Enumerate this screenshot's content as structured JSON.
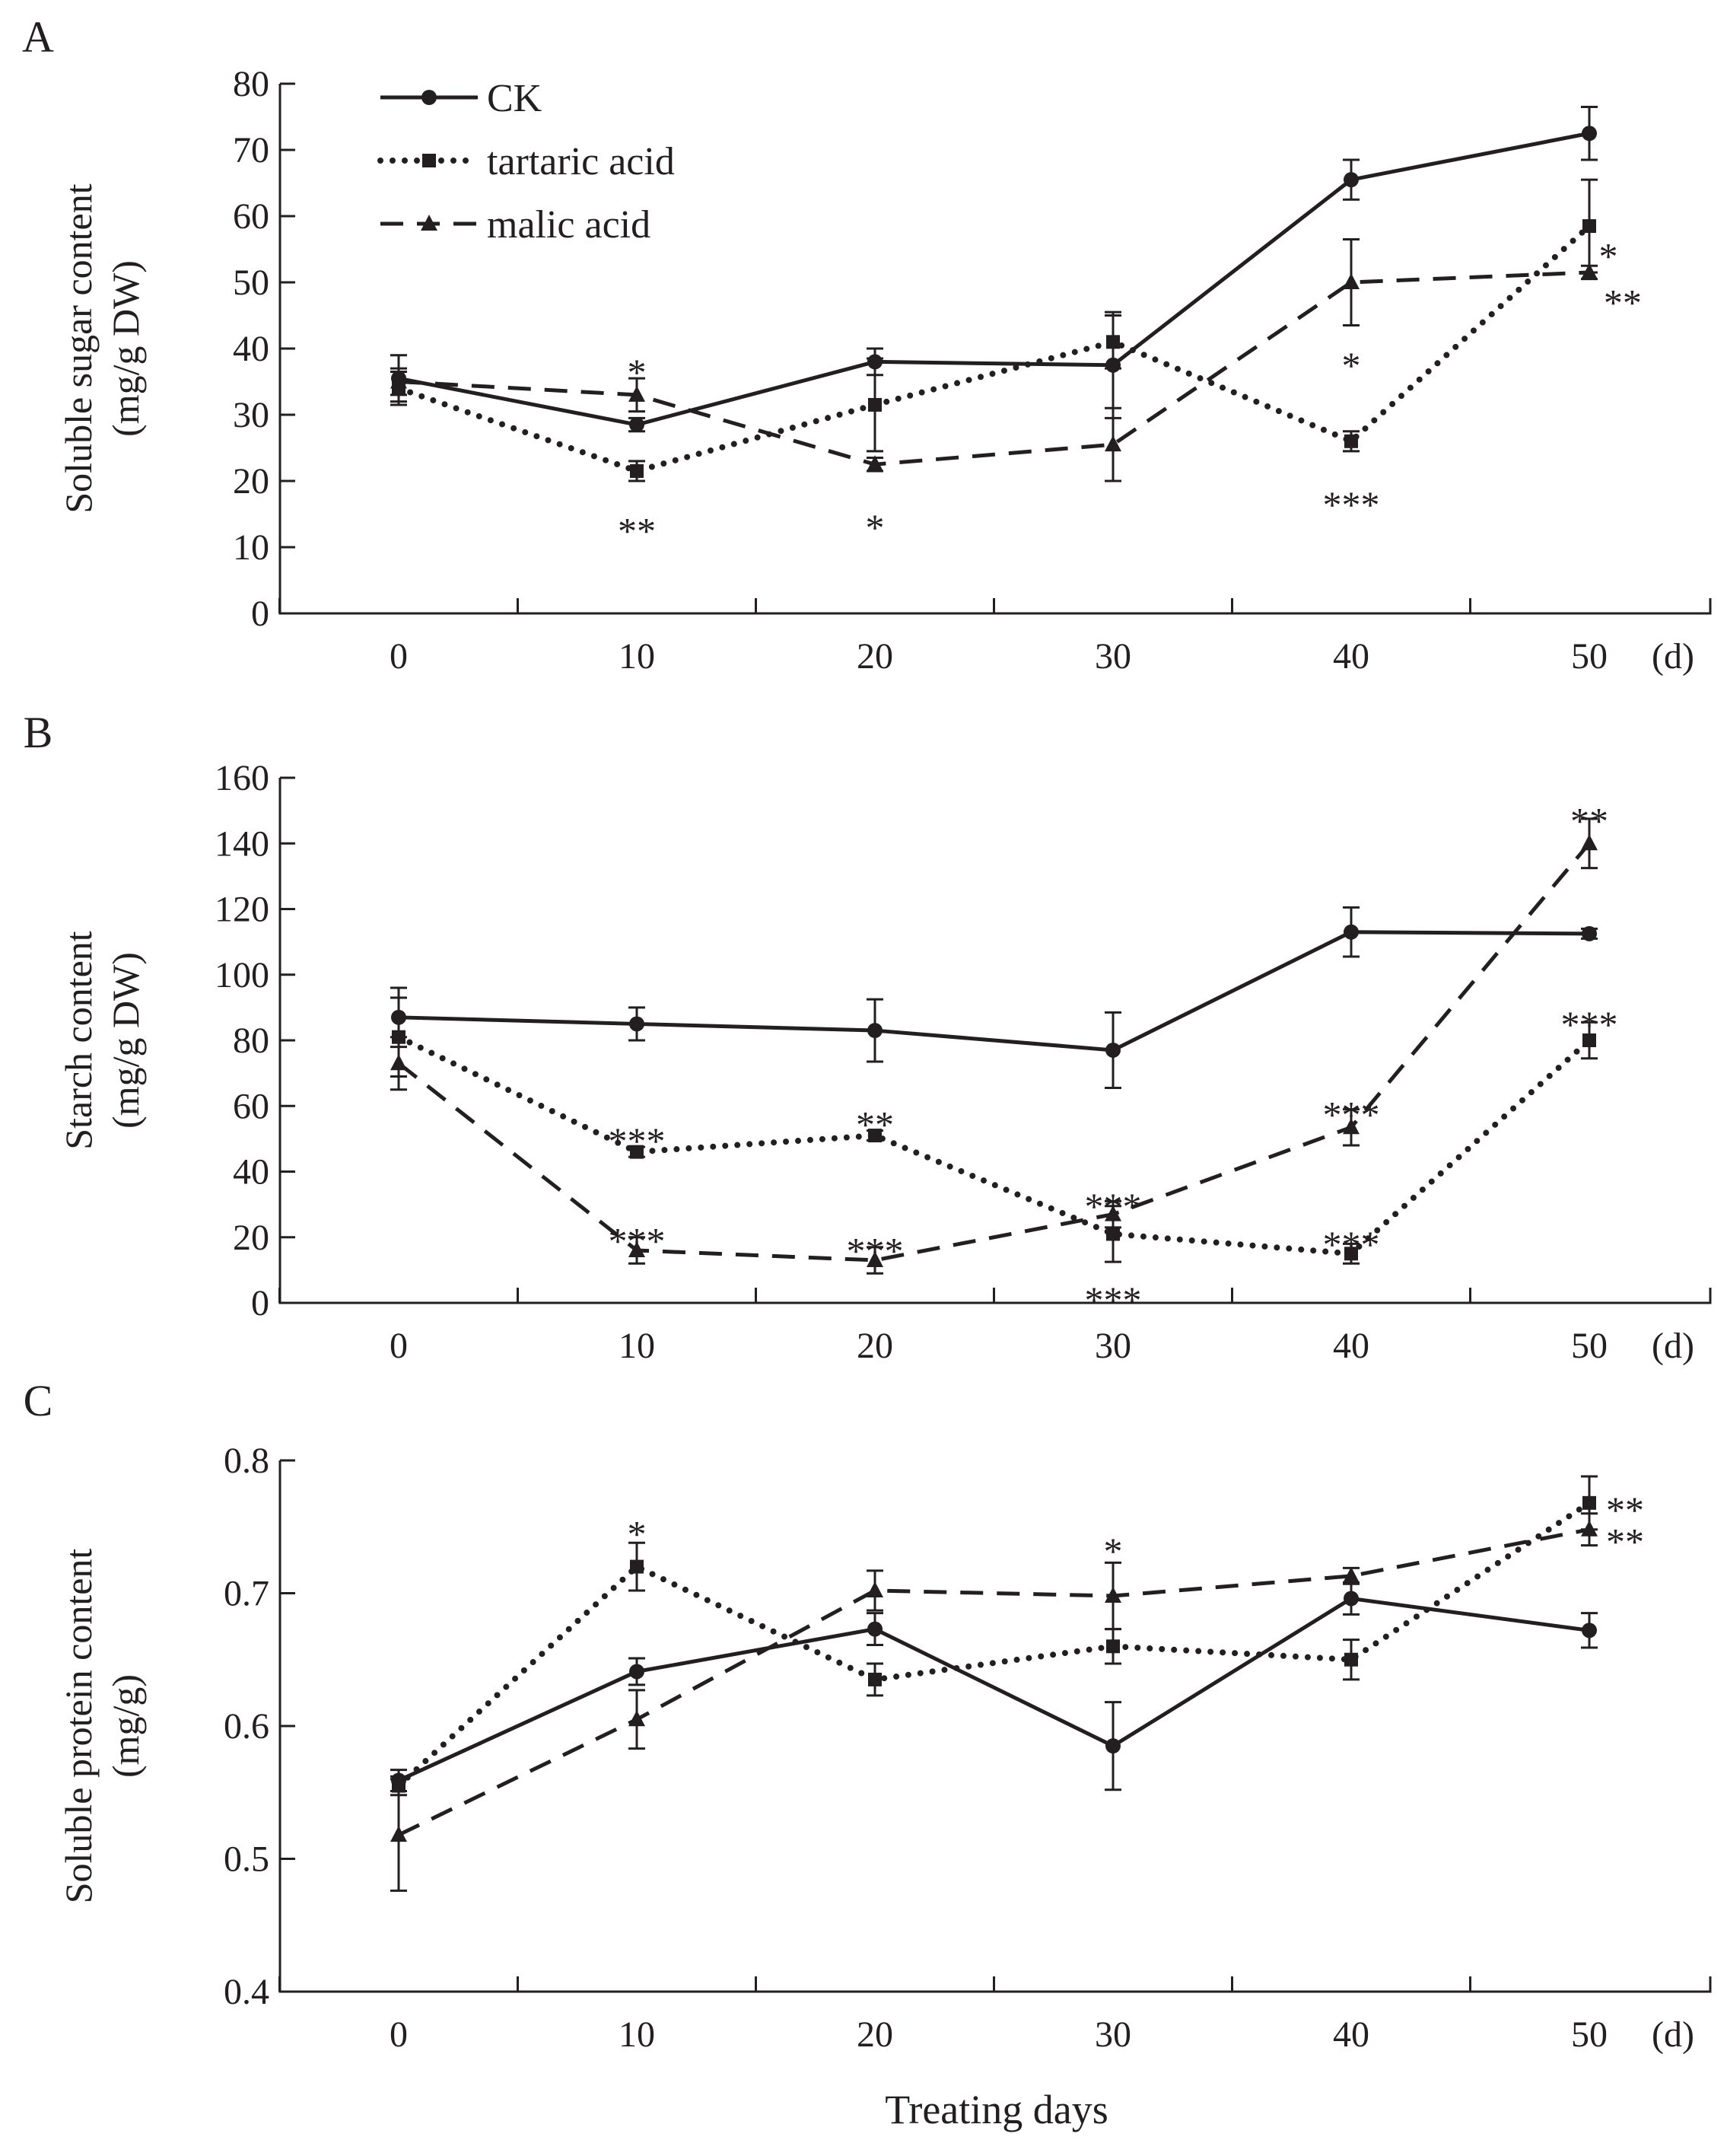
{
  "figure": {
    "x_title": "Treating days",
    "x_unit_suffix": "(d)"
  },
  "legend": [
    {
      "key": "ck",
      "label": "CK"
    },
    {
      "key": "tartaric",
      "label": "tartaric acid"
    },
    {
      "key": "malic",
      "label": "malic acid"
    }
  ],
  "chart_data": [
    {
      "panel": "A",
      "type": "line",
      "ylabel": [
        "Soluble sugar content",
        "(mg/g DW)"
      ],
      "xlabel": "Treating days",
      "categories": [
        0,
        10,
        20,
        30,
        40,
        50
      ],
      "x_tick_labels": [
        "0",
        "10",
        "20",
        "30",
        "40",
        "50"
      ],
      "ylim": [
        0,
        80
      ],
      "y_ticks": [
        0,
        10,
        20,
        30,
        40,
        50,
        60,
        70,
        80
      ],
      "y_tick_labels": [
        "0",
        "10",
        "20",
        "30",
        "40",
        "50",
        "60",
        "70",
        "80"
      ],
      "series": [
        {
          "name": "CK",
          "marker": "circle",
          "style": "solid",
          "x": [
            0,
            10,
            20,
            30,
            40,
            50
          ],
          "values": [
            35.5,
            28.5,
            38,
            37.5,
            65.5,
            72.5
          ],
          "errors": [
            3.5,
            1,
            2,
            8,
            3,
            4
          ]
        },
        {
          "name": "tartaric acid",
          "marker": "square",
          "style": "dotted",
          "x": [
            0,
            10,
            20,
            30,
            40,
            50
          ],
          "values": [
            34,
            21.5,
            31.5,
            41,
            26,
            58.5
          ],
          "errors": [
            2.5,
            1.5,
            7,
            4,
            1.5,
            7
          ]
        },
        {
          "name": "malic acid",
          "marker": "triangle",
          "style": "dashed",
          "x": [
            0,
            10,
            20,
            30,
            40,
            50
          ],
          "values": [
            35,
            33,
            22.5,
            25.5,
            50,
            51.5
          ],
          "errors": [
            2,
            2.5,
            1,
            5.5,
            6.5,
            1
          ]
        }
      ],
      "annotations": [
        {
          "x": 10,
          "y": 37.5,
          "text": "*"
        },
        {
          "x": 10,
          "y": 13.5,
          "text": "**"
        },
        {
          "x": 20,
          "y": 14,
          "text": "*"
        },
        {
          "x": 40,
          "y": 38.5,
          "text": "*"
        },
        {
          "x": 40,
          "y": 17.5,
          "text": "***"
        },
        {
          "x": 50.8,
          "y": 55,
          "text": "*"
        },
        {
          "x": 51.4,
          "y": 48,
          "text": "**"
        }
      ]
    },
    {
      "panel": "B",
      "type": "line",
      "ylabel": [
        "Starch content",
        "(mg/g DW)"
      ],
      "xlabel": "Treating days",
      "categories": [
        0,
        10,
        20,
        30,
        40,
        50
      ],
      "x_tick_labels": [
        "0",
        "10",
        "20",
        "30",
        "40",
        "50"
      ],
      "ylim": [
        0,
        160
      ],
      "y_ticks": [
        0,
        20,
        40,
        60,
        80,
        100,
        120,
        140,
        160
      ],
      "y_tick_labels": [
        "0",
        "20",
        "40",
        "60",
        "80",
        "100",
        "120",
        "140",
        "160"
      ],
      "series": [
        {
          "name": "CK",
          "marker": "circle",
          "style": "solid",
          "x": [
            0,
            10,
            20,
            30,
            40,
            50
          ],
          "values": [
            87,
            85,
            83,
            77,
            113,
            112.5
          ],
          "errors": [
            9,
            5,
            9.5,
            11.5,
            7.5,
            1.5
          ]
        },
        {
          "name": "tartaric acid",
          "marker": "square",
          "style": "dotted",
          "x": [
            0,
            10,
            20,
            30,
            40,
            50
          ],
          "values": [
            81,
            46,
            51,
            21,
            15,
            80
          ],
          "errors": [
            12,
            1.5,
            1.5,
            8.5,
            3,
            5.5
          ]
        },
        {
          "name": "malic acid",
          "marker": "triangle",
          "style": "dashed",
          "x": [
            0,
            10,
            20,
            30,
            40,
            50
          ],
          "values": [
            73,
            16,
            13,
            27,
            53.5,
            140
          ],
          "errors": [
            8,
            4,
            4,
            4,
            5.5,
            7.5
          ]
        }
      ],
      "annotations": [
        {
          "x": 10,
          "y": 51.5,
          "text": "***"
        },
        {
          "x": 10,
          "y": 21,
          "text": "***"
        },
        {
          "x": 20,
          "y": 56.5,
          "text": "**"
        },
        {
          "x": 20,
          "y": 18,
          "text": "***"
        },
        {
          "x": 30,
          "y": 31.5,
          "text": "***"
        },
        {
          "x": 30,
          "y": 3,
          "text": "***"
        },
        {
          "x": 40,
          "y": 59.5,
          "text": "***"
        },
        {
          "x": 40,
          "y": 20,
          "text": "***"
        },
        {
          "x": 50,
          "y": 149,
          "text": "**"
        },
        {
          "x": 50,
          "y": 87,
          "text": "***"
        }
      ]
    },
    {
      "panel": "C",
      "type": "line",
      "ylabel": [
        "Soluble protein content",
        "(mg/g)"
      ],
      "xlabel": "Treating days",
      "categories": [
        0,
        10,
        20,
        30,
        40,
        50
      ],
      "x_tick_labels": [
        "0",
        "10",
        "20",
        "30",
        "40",
        "50"
      ],
      "ylim": [
        0.4,
        0.8
      ],
      "y_ticks": [
        0.4,
        0.5,
        0.6,
        0.7,
        0.8
      ],
      "y_tick_labels": [
        "0.4",
        "0.5",
        "0.6",
        "0.7",
        "0.8"
      ],
      "series": [
        {
          "name": "CK",
          "marker": "circle",
          "style": "solid",
          "x": [
            0,
            10,
            20,
            30,
            40,
            50
          ],
          "values": [
            0.559,
            0.641,
            0.673,
            0.585,
            0.696,
            0.672
          ],
          "errors": [
            0.008,
            0.01,
            0.012,
            0.033,
            0.012,
            0.013
          ]
        },
        {
          "name": "tartaric acid",
          "marker": "square",
          "style": "dotted",
          "x": [
            0,
            10,
            20,
            30,
            40,
            50
          ],
          "values": [
            0.555,
            0.72,
            0.635,
            0.66,
            0.65,
            0.768
          ],
          "errors": [
            0.007,
            0.018,
            0.012,
            0.013,
            0.015,
            0.02
          ]
        },
        {
          "name": "malic acid",
          "marker": "triangle",
          "style": "dashed",
          "x": [
            0,
            10,
            20,
            30,
            40,
            50
          ],
          "values": [
            0.518,
            0.605,
            0.702,
            0.698,
            0.713,
            0.748
          ],
          "errors": [
            0.042,
            0.022,
            0.015,
            0.025,
            0.006,
            0.012
          ]
        }
      ],
      "annotations": [
        {
          "x": 10,
          "y": 0.75,
          "text": "*"
        },
        {
          "x": 30,
          "y": 0.737,
          "text": "*"
        },
        {
          "x": 51.5,
          "y": 0.768,
          "text": "**"
        },
        {
          "x": 51.5,
          "y": 0.744,
          "text": "**"
        }
      ]
    }
  ]
}
